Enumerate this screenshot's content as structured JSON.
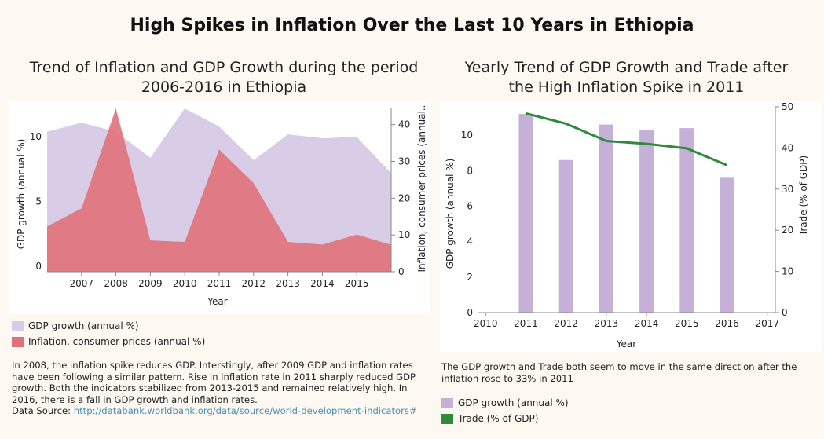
{
  "title": "High Spikes in Inflation Over the Last 10 Years in Ethiopia",
  "left": {
    "subtitle_line1": "Trend of Inflation and GDP Growth during the period",
    "subtitle_line2": "2006-2016 in Ethiopia",
    "legend": [
      {
        "label": "GDP growth (annual %)",
        "color": "#d9cce6"
      },
      {
        "label": "Inflation, consumer prices (annual %)",
        "color": "#e0717a"
      }
    ],
    "description": "In 2008, the inflation spike reduces GDP. Interstingly, after 2009 GDP and inflation rates have been following a similar pattern. Rise in inflation rate in 2011 sharply reduced GDP growth. Both the indicators stabilized from 2013-2015 and remained relatively high. In 2016, there is a fall in GDP growth and inflation rates.",
    "source_label": "Data Source: ",
    "source_link": "http://databank.worldbank.org/data/source/world-development-indicators#"
  },
  "right": {
    "subtitle_line1": "Yearly Trend of GDP Growth and Trade after",
    "subtitle_line2": "the High Inflation Spike in 2011",
    "legend": [
      {
        "label": "GDP growth (annual %)",
        "color": "#c5b0d8"
      },
      {
        "label": "Trade (% of GDP)",
        "color": "#2e8b3e"
      }
    ],
    "description": "The GDP growth and Trade both seem to move in the same direction after the inflation rose to 33% in 2011"
  },
  "chart_data": [
    {
      "type": "area",
      "x": [
        2006,
        2007,
        2008,
        2009,
        2010,
        2011,
        2012,
        2013,
        2014,
        2015,
        2016
      ],
      "series": [
        {
          "name": "GDP growth (annual %)",
          "axis": "left",
          "color": "#d9cce6",
          "values": [
            10.8,
            11.5,
            10.8,
            8.8,
            12.6,
            11.2,
            8.6,
            10.6,
            10.3,
            10.4,
            7.6
          ]
        },
        {
          "name": "Inflation, consumer prices (annual %)",
          "axis": "right",
          "color": "#e0717a",
          "values": [
            12.3,
            17.2,
            44.4,
            8.5,
            8.1,
            33.2,
            24.1,
            8.1,
            7.4,
            10.1,
            7.3
          ]
        }
      ],
      "xticks": [
        2007,
        2008,
        2009,
        2010,
        2011,
        2012,
        2013,
        2014,
        2015
      ],
      "xlabel": "Year",
      "ylabel": "GDP growth (annual %)",
      "y2label": "Inflation, consumer prices (annual..",
      "ylim": [
        0,
        12.6
      ],
      "yticks": [
        0,
        5,
        10
      ],
      "y2lim": [
        0,
        44.4
      ],
      "y2ticks": [
        0,
        10,
        20,
        30,
        40
      ],
      "legend_position": "bottom"
    },
    {
      "type": "bar",
      "x": [
        2011,
        2012,
        2013,
        2014,
        2015,
        2016
      ],
      "series": [
        {
          "name": "GDP growth (annual %)",
          "kind": "bar",
          "axis": "left",
          "color": "#c5b0d8",
          "values": [
            11.2,
            8.6,
            10.6,
            10.3,
            10.4,
            7.6
          ]
        },
        {
          "name": "Trade (% of GDP)",
          "kind": "line",
          "axis": "right",
          "color": "#2e8b3e",
          "values": [
            48.4,
            45.9,
            41.7,
            41.0,
            39.9,
            35.8
          ]
        }
      ],
      "xticks": [
        2010,
        2011,
        2012,
        2013,
        2014,
        2015,
        2016,
        2017
      ],
      "xlabel": "Year",
      "ylabel": "GDP growth (annual %)",
      "y2label": "Trade (% of GDP)",
      "ylim": [
        0,
        11.6
      ],
      "yticks": [
        0,
        2,
        4,
        6,
        8,
        10
      ],
      "y2lim": [
        0,
        50
      ],
      "y2ticks": [
        0,
        10,
        20,
        30,
        40,
        50
      ],
      "xlim": [
        2009.8,
        2017.2
      ],
      "legend_position": "bottom"
    }
  ]
}
